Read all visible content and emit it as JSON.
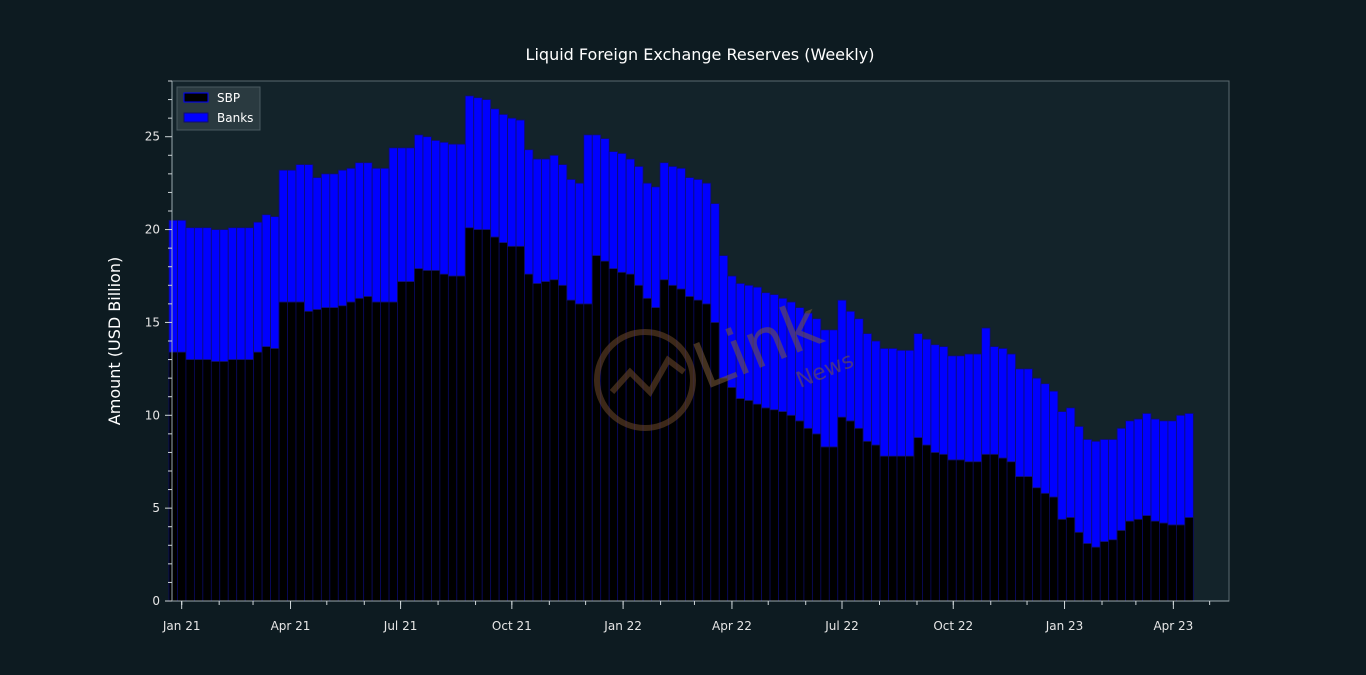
{
  "colors": {
    "background": "#0d1b21",
    "plot_background": "#13232a",
    "sbp": "#000000",
    "banks": "#0000ff",
    "bar_edge": "#10106a",
    "axes": "#5a6a70"
  },
  "watermark": {
    "brand": "Link",
    "sub": "News"
  },
  "chart_data": {
    "type": "bar",
    "stacked": true,
    "title": "Liquid Foreign Exchange Reserves (Weekly)",
    "xlabel": "",
    "ylabel": "Amount (USD Billion)",
    "ylim": [
      0,
      28
    ],
    "yticks": [
      0,
      5,
      10,
      15,
      20,
      25
    ],
    "x_range": [
      "2020-12-24",
      "2023-05-17"
    ],
    "xticks": [
      {
        "date": "2021-01-01",
        "label": "Jan 21"
      },
      {
        "date": "2021-04-01",
        "label": "Apr 21"
      },
      {
        "date": "2021-07-01",
        "label": "Jul 21"
      },
      {
        "date": "2021-10-01",
        "label": "Oct 21"
      },
      {
        "date": "2022-01-01",
        "label": "Jan 22"
      },
      {
        "date": "2022-04-01",
        "label": "Apr 22"
      },
      {
        "date": "2022-07-01",
        "label": "Jul 22"
      },
      {
        "date": "2022-10-01",
        "label": "Oct 22"
      },
      {
        "date": "2023-01-01",
        "label": "Jan 23"
      },
      {
        "date": "2023-04-01",
        "label": "Apr 23"
      }
    ],
    "legend": {
      "position": "upper-left",
      "entries": [
        "SBP",
        "Banks"
      ]
    },
    "grid": false,
    "first_week": "2020-12-25",
    "bar_width_days": 7,
    "series": [
      {
        "name": "SBP",
        "values": [
          13.4,
          13.4,
          13.0,
          13.0,
          13.0,
          12.9,
          12.9,
          13.0,
          13.0,
          13.0,
          13.4,
          13.7,
          13.6,
          16.1,
          16.1,
          16.1,
          15.6,
          15.7,
          15.8,
          15.8,
          15.9,
          16.1,
          16.3,
          16.4,
          16.1,
          16.1,
          16.1,
          17.2,
          17.2,
          17.9,
          17.8,
          17.8,
          17.6,
          17.5,
          17.5,
          20.1,
          20.0,
          20.0,
          19.6,
          19.3,
          19.1,
          19.1,
          17.6,
          17.1,
          17.2,
          17.3,
          17.0,
          16.2,
          16.0,
          16.0,
          18.6,
          18.3,
          17.9,
          17.7,
          17.6,
          17.0,
          16.3,
          15.8,
          17.3,
          17.0,
          16.8,
          16.4,
          16.2,
          16.0,
          15.0,
          12.0,
          11.5,
          10.9,
          10.8,
          10.6,
          10.4,
          10.3,
          10.2,
          10.0,
          9.7,
          9.3,
          9.0,
          8.3,
          8.3,
          9.9,
          9.7,
          9.3,
          8.6,
          8.4,
          7.8,
          7.8,
          7.8,
          7.8,
          8.8,
          8.4,
          8.0,
          7.9,
          7.6,
          7.6,
          7.5,
          7.5,
          7.9,
          7.9,
          7.7,
          7.5,
          6.7,
          6.7,
          6.1,
          5.8,
          5.6,
          4.4,
          4.5,
          3.7,
          3.1,
          2.9,
          3.2,
          3.3,
          3.8,
          4.3,
          4.4,
          4.6,
          4.3,
          4.2,
          4.1,
          4.1,
          4.5
        ]
      },
      {
        "name": "Banks",
        "values": [
          7.1,
          7.1,
          7.1,
          7.1,
          7.1,
          7.1,
          7.1,
          7.1,
          7.1,
          7.1,
          7.0,
          7.1,
          7.1,
          7.1,
          7.1,
          7.4,
          7.9,
          7.1,
          7.2,
          7.2,
          7.3,
          7.2,
          7.3,
          7.2,
          7.2,
          7.2,
          8.3,
          7.2,
          7.2,
          7.2,
          7.2,
          7.0,
          7.1,
          7.1,
          7.1,
          7.1,
          7.1,
          7.0,
          6.9,
          6.9,
          6.9,
          6.8,
          6.7,
          6.7,
          6.6,
          6.7,
          6.5,
          6.5,
          6.5,
          9.1,
          6.5,
          6.6,
          6.3,
          6.4,
          6.2,
          6.4,
          6.2,
          6.5,
          6.3,
          6.4,
          6.5,
          6.4,
          6.5,
          6.5,
          6.4,
          6.6,
          6.0,
          6.2,
          6.2,
          6.3,
          6.2,
          6.2,
          6.1,
          6.1,
          6.1,
          6.2,
          6.2,
          6.3,
          6.3,
          6.3,
          5.9,
          5.9,
          5.8,
          5.6,
          5.8,
          5.8,
          5.7,
          5.7,
          5.6,
          5.7,
          5.8,
          5.8,
          5.6,
          5.6,
          5.8,
          5.8,
          6.8,
          5.8,
          5.9,
          5.8,
          5.8,
          5.8,
          5.9,
          5.9,
          5.7,
          5.8,
          5.9,
          5.7,
          5.6,
          5.7,
          5.5,
          5.4,
          5.5,
          5.4,
          5.4,
          5.5,
          5.5,
          5.5,
          5.6,
          5.9,
          5.6
        ]
      }
    ]
  }
}
